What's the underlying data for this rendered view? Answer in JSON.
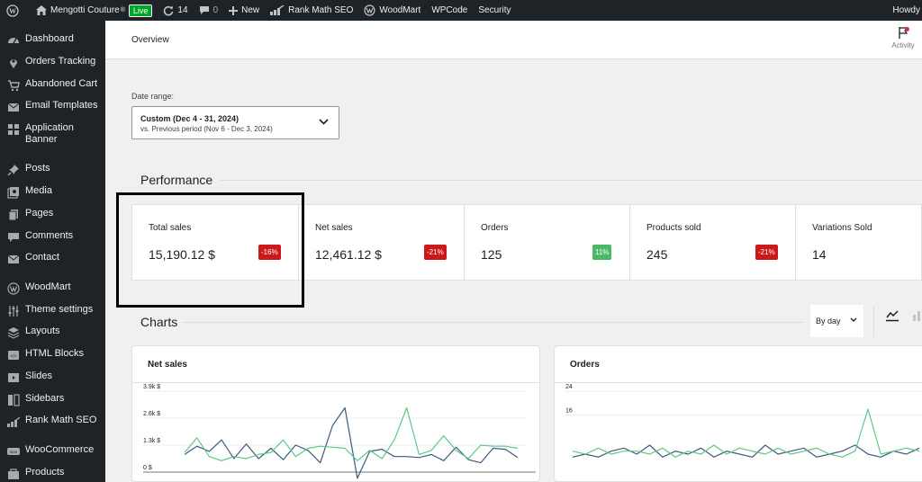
{
  "adminbar": {
    "site_name": "Mengotti Couture",
    "live_label": "Live",
    "updates_count": "14",
    "comments_count": "0",
    "new_label": "New",
    "rank_math": "Rank Math SEO",
    "woodmart": "WoodMart",
    "wpcode": "WPCode",
    "security": "Security",
    "howdy": "Howdy"
  },
  "sidebar": {
    "items": [
      {
        "label": "Dashboard",
        "icon": "dashboard-icon"
      },
      {
        "label": "Orders Tracking",
        "icon": "location-pin-icon"
      },
      {
        "label": "Abandoned Cart",
        "icon": "cart-icon"
      },
      {
        "label": "Email Templates",
        "icon": "envelope-icon"
      },
      {
        "label": "Application Banner",
        "icon": "grid-icon"
      },
      {
        "label": "Posts",
        "icon": "pushpin-icon"
      },
      {
        "label": "Media",
        "icon": "media-icon"
      },
      {
        "label": "Pages",
        "icon": "pages-icon"
      },
      {
        "label": "Comments",
        "icon": "comment-icon"
      },
      {
        "label": "Contact",
        "icon": "envelope-icon"
      },
      {
        "label": "WoodMart",
        "icon": "woodmart-icon"
      },
      {
        "label": "Theme settings",
        "icon": "sliders-icon"
      },
      {
        "label": "Layouts",
        "icon": "layers-icon"
      },
      {
        "label": "HTML Blocks",
        "icon": "html-block-icon"
      },
      {
        "label": "Slides",
        "icon": "slides-icon"
      },
      {
        "label": "Sidebars",
        "icon": "sidebars-icon"
      },
      {
        "label": "Rank Math SEO",
        "icon": "rank-math-icon"
      },
      {
        "label": "WooCommerce",
        "icon": "woo-icon"
      },
      {
        "label": "Products",
        "icon": "products-icon"
      }
    ]
  },
  "header": {
    "title": "Overview",
    "activity_label": "Activity"
  },
  "date_range": {
    "label": "Date range:",
    "main": "Custom (Dec 4 - 31, 2024)",
    "sub": "vs. Previous period (Nov 6 - Dec 3, 2024)"
  },
  "performance": {
    "title": "Performance",
    "cards": [
      {
        "label": "Total sales",
        "value": "15,190.12 $",
        "delta": "-16%",
        "trend": "neg"
      },
      {
        "label": "Net sales",
        "value": "12,461.12 $",
        "delta": "-21%",
        "trend": "neg"
      },
      {
        "label": "Orders",
        "value": "125",
        "delta": "11%",
        "trend": "pos"
      },
      {
        "label": "Products sold",
        "value": "245",
        "delta": "-21%",
        "trend": "neg"
      },
      {
        "label": "Variations Sold",
        "value": "14",
        "delta": "",
        "trend": ""
      }
    ]
  },
  "charts": {
    "title": "Charts",
    "interval": "By day"
  },
  "colors": {
    "current_series": "#3d5a80",
    "previous_series": "#5ec78a",
    "negative": "#cc1818",
    "positive": "#4ab866",
    "admin_dark": "#1d2327"
  },
  "chart_data": [
    {
      "type": "line",
      "title": "Net sales",
      "y_ticks": [
        "3.9k $",
        "2.6k $",
        "1.3k $",
        "0 $"
      ],
      "ylim": [
        0,
        3900
      ],
      "x": [
        1,
        2,
        3,
        4,
        5,
        6,
        7,
        8,
        9,
        10,
        11,
        12,
        13,
        14,
        15,
        16,
        17,
        18,
        19,
        20,
        21,
        22,
        23,
        24,
        25,
        26,
        27,
        28
      ],
      "series": [
        {
          "values": [
            850,
            1250,
            1000,
            1550,
            650,
            1350,
            650,
            1150,
            600,
            1300,
            1050,
            450,
            2250,
            3100,
            -300,
            1000,
            1100,
            750,
            750,
            700,
            850,
            550,
            1200,
            600,
            450,
            1150,
            1100,
            700
          ]
        },
        {
          "values": [
            950,
            1650,
            750,
            550,
            750,
            650,
            850,
            950,
            1550,
            750,
            1150,
            1250,
            1200,
            1150,
            550,
            1050,
            650,
            1550,
            3100,
            850,
            1050,
            1750,
            1050,
            650,
            1300,
            1250,
            1250,
            1150
          ]
        }
      ]
    },
    {
      "type": "line",
      "title": "Orders",
      "y_ticks": [
        "24",
        "16"
      ],
      "ylim": [
        0,
        24
      ],
      "x": [
        1,
        2,
        3,
        4,
        5,
        6,
        7,
        8,
        9,
        10,
        11,
        12,
        13,
        14,
        15,
        16,
        17,
        18,
        19,
        20,
        21,
        22,
        23,
        24,
        25,
        26,
        27,
        28
      ],
      "series": [
        {
          "values": [
            2,
            3,
            2,
            4,
            5,
            3,
            6,
            2,
            4,
            3,
            5,
            2,
            4,
            3,
            2,
            6,
            3,
            4,
            5,
            2,
            3,
            4,
            6,
            3,
            2,
            4,
            3,
            5
          ]
        },
        {
          "values": [
            4,
            3,
            5,
            3,
            4,
            4,
            3,
            5,
            2,
            4,
            3,
            6,
            3,
            5,
            4,
            3,
            5,
            3,
            4,
            5,
            3,
            2,
            4,
            18,
            3,
            4,
            5,
            4
          ]
        }
      ]
    }
  ]
}
